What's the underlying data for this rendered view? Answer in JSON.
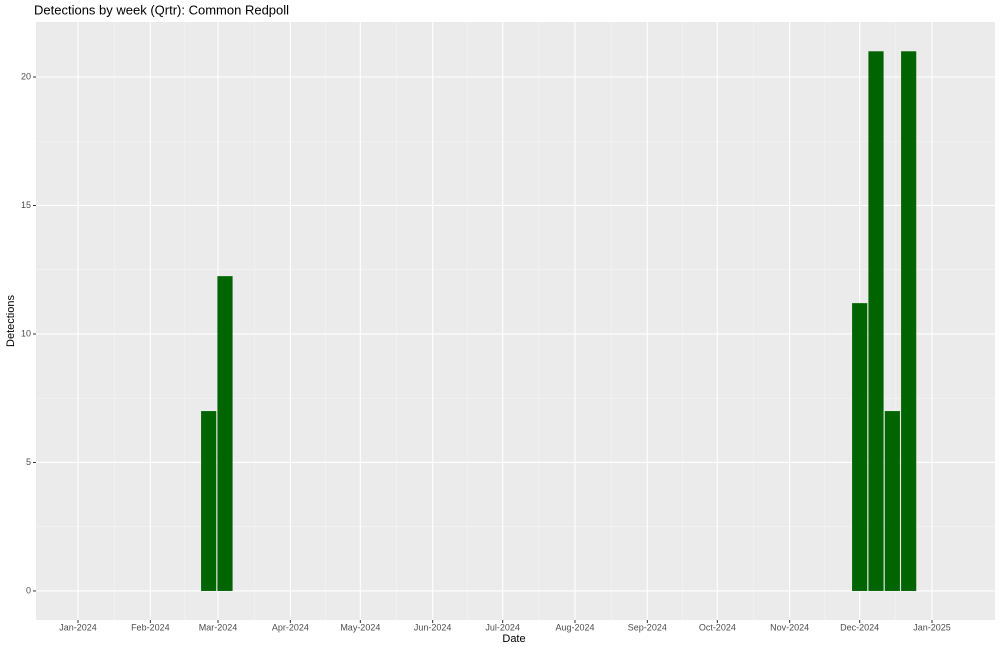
{
  "chart_data": {
    "type": "bar",
    "title": "Detections by week (Qrtr): Common Redpoll",
    "x_label": "Date",
    "y_label": "Detections",
    "x": [
      "2024-02-26",
      "2024-03-04",
      "2024-12-01",
      "2024-12-08",
      "2024-12-15",
      "2024-12-22"
    ],
    "values": [
      7,
      12.25,
      11.2,
      21,
      7,
      21
    ],
    "color": "#006400",
    "xlim": [
      "2023-12-14",
      "2025-01-28"
    ],
    "xticks": [
      {
        "value": "2024-01",
        "label": "Jan-2024"
      },
      {
        "value": "2024-02",
        "label": "Feb-2024"
      },
      {
        "value": "2024-03",
        "label": "Mar-2024"
      },
      {
        "value": "2024-04",
        "label": "Apr-2024"
      },
      {
        "value": "2024-05",
        "label": "May-2024"
      },
      {
        "value": "2024-06",
        "label": "Jun-2024"
      },
      {
        "value": "2024-07",
        "label": "Jul-2024"
      },
      {
        "value": "2024-08",
        "label": "Aug-2024"
      },
      {
        "value": "2024-09",
        "label": "Sep-2024"
      },
      {
        "value": "2024-10",
        "label": "Oct-2024"
      },
      {
        "value": "2024-11",
        "label": "Nov-2024"
      },
      {
        "value": "2024-12",
        "label": "Dec-2024"
      },
      {
        "value": "2025-01",
        "label": "Jan-2025"
      }
    ],
    "ylim": [
      -1.13,
      22.14
    ],
    "yticks": [
      0,
      5,
      10,
      15,
      20
    ],
    "grid": true
  }
}
